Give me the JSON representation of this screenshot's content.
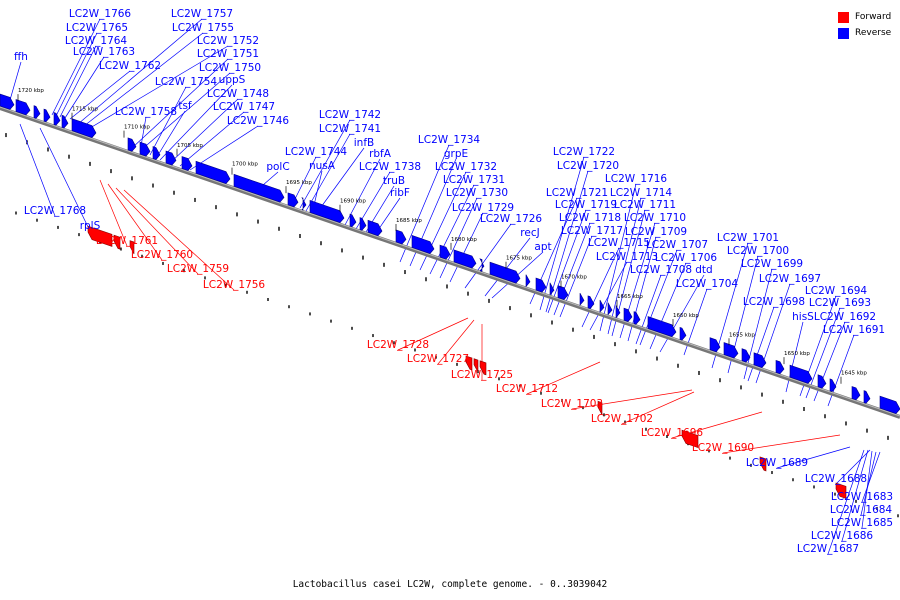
{
  "legend": {
    "forward": {
      "label": "Forward",
      "color": "#ff0000"
    },
    "reverse": {
      "label": "Reverse",
      "color": "#0000ff"
    }
  },
  "caption": "Lactobacillus casei LC2W, complete genome. - 0..3039042",
  "scale_labels": [
    "1720 kbp",
    "1715 kbp",
    "1710 kbp",
    "1705 kbp",
    "1700 kbp",
    "1695 kbp",
    "1690 kbp",
    "1685 kbp",
    "1680 kbp",
    "1675 kbp",
    "1670 kbp",
    "1665 kbp",
    "1660 kbp",
    "1655 kbp",
    "1650 kbp",
    "1645 kbp"
  ],
  "labels": {
    "reverse": [
      "LC2W_1766",
      "LC2W_1765",
      "LC2W_1764",
      "LC2W_1763",
      "LC2W_1762",
      "ffh",
      "LC2W_1757",
      "LC2W_1755",
      "LC2W_1752",
      "LC2W_1751",
      "LC2W_1750",
      "LC2W_1754",
      "uppS",
      "tsf",
      "LC2W_1748",
      "LC2W_1758",
      "LC2W_1747",
      "LC2W_1746",
      "LC2W_1742",
      "LC2W_1741",
      "infB",
      "LC2W_1744",
      "nusA",
      "polC",
      "rbfA",
      "LC2W_1738",
      "truB",
      "ribF",
      "LC2W_1734",
      "grpE",
      "LC2W_1732",
      "LC2W_1731",
      "LC2W_1730",
      "LC2W_1729",
      "LC2W_1726",
      "recJ",
      "apt",
      "LC2W_1722",
      "LC2W_1720",
      "LC2W_1721",
      "LC2W_1719",
      "LC2W_1718",
      "LC2W_1717",
      "LC2W_1715",
      "LC2W_1713",
      "LC2W_1716",
      "LC2W_1714",
      "LC2W_1711",
      "LC2W_1710",
      "LC2W_1709",
      "LC2W_1707",
      "LC2W_1706",
      "LC2W_1708",
      "dtd",
      "LC2W_1704",
      "LC2W_1701",
      "LC2W_1700",
      "LC2W_1699",
      "LC2W_1697",
      "LC2W_1698",
      "hisS",
      "LC2W_1694",
      "LC2W_1693",
      "LC2W_1692",
      "LC2W_1691",
      "LC2W_1768",
      "rplS",
      "LC2W_1689",
      "LC2W_1688",
      "LC2W_1683",
      "LC2W_1684",
      "LC2W_1685",
      "LC2W_1686",
      "LC2W_1687"
    ],
    "forward": [
      "LC2W_1761",
      "LC2W_1760",
      "LC2W_1759",
      "LC2W_1756",
      "LC2W_1728",
      "LC2W_1727",
      "LC2W_1725",
      "LC2W_1712",
      "LC2W_1703",
      "LC2W_1702",
      "LC2W_1696",
      "LC2W_1690"
    ]
  }
}
